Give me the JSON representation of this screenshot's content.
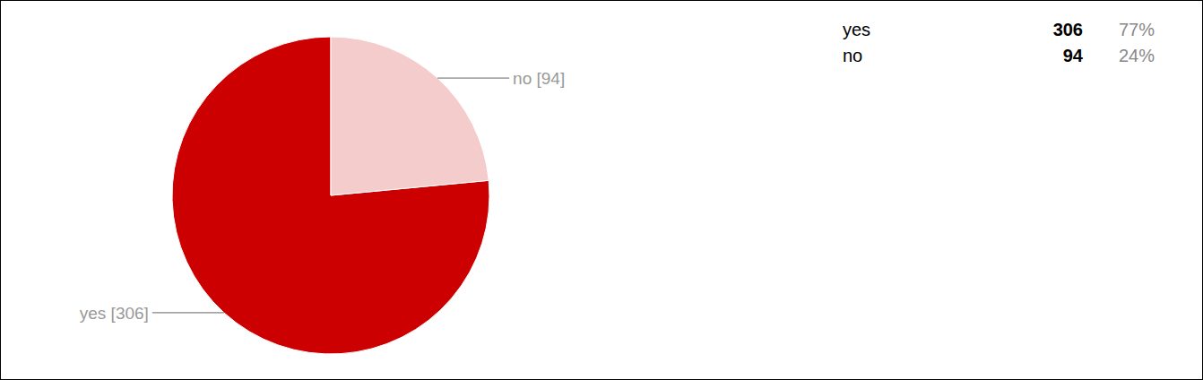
{
  "chart_data": {
    "type": "pie",
    "categories": [
      "yes",
      "no"
    ],
    "values": [
      306,
      94
    ],
    "value_labels": [
      "yes [306]",
      "no [94]"
    ],
    "percentages": [
      {
        "value": 77,
        "label": "77%"
      },
      {
        "value": 24,
        "label": "24%"
      }
    ],
    "colors": [
      "#cc0000",
      "#f4cccc"
    ]
  }
}
